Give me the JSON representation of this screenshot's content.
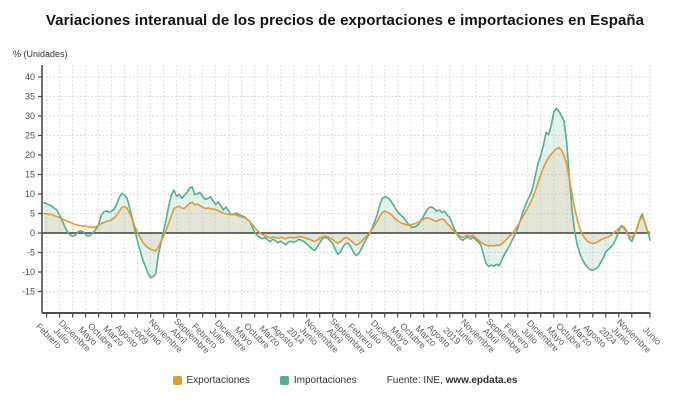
{
  "title": "Variaciones interanual de los precios de exportaciones e importaciones en España",
  "y_axis_label": "% (Unidades)",
  "legend": {
    "exportaciones": "Exportaciones",
    "importaciones": "Importaciones",
    "source_prefix": "Fuente: INE,",
    "source_link": "www.epdata.es"
  },
  "colors": {
    "exportaciones": "#df9c3b",
    "importaciones": "#55b091",
    "exportaciones_fill": "rgba(223,156,59,0.13)",
    "importaciones_fill": "rgba(85,176,145,0.16)",
    "grid": "#d2d6db",
    "axis": "#4d4d4d",
    "zero_line": "#3f3f3f",
    "tick_text": "#4d4d4d",
    "xlabel_text": "#5f5f5f"
  },
  "chart_data": {
    "type": "line",
    "title": "Variaciones interanual de los precios de exportaciones e importaciones en España",
    "xlabel": "",
    "ylabel": "% (Unidades)",
    "ylim": [
      -15,
      40
    ],
    "y_ticks": [
      40,
      35,
      30,
      25,
      20,
      15,
      10,
      5,
      0,
      -5,
      -10,
      -15
    ],
    "grid": true,
    "legend_position": "bottom",
    "x_frequency": "monthly",
    "x_tick_labels": [
      "Febrero",
      "Julio",
      "Diciembre",
      "Mayo",
      "Octubre",
      "Marzo",
      "Agosto",
      "2009",
      "Junio",
      "Noviembre",
      "Abril",
      "Septiembre",
      "Febrero",
      "Julio",
      "Diciembre",
      "Mayo",
      "Octubre",
      "Marzo",
      "Agosto",
      "2014",
      "Junio",
      "Noviembre",
      "Abril",
      "Septiembre",
      "Febrero",
      "Julio",
      "Diciembre",
      "Mayo",
      "Octubre",
      "Marzo",
      "Agosto",
      "2019",
      "Junio",
      "Noviembre",
      "Abril",
      "Septiembre",
      "Febrero",
      "Julio",
      "Diciembre",
      "Mayo",
      "Octubre",
      "Marzo",
      "Agosto",
      "2024",
      "Junio",
      "Noviembre",
      "Junio"
    ],
    "series": [
      {
        "name": "Exportaciones",
        "color": "#df9c3b",
        "values": [
          4.9,
          5.0,
          4.7,
          4.8,
          4.4,
          4.2,
          3.9,
          3.6,
          3.3,
          3.0,
          2.8,
          2.5,
          2.2,
          2.0,
          1.9,
          1.7,
          1.8,
          1.5,
          1.6,
          1.4,
          1.6,
          1.9,
          2.4,
          2.7,
          3.0,
          3.1,
          3.4,
          3.9,
          4.6,
          5.6,
          6.6,
          6.8,
          6.3,
          5.0,
          3.4,
          1.6,
          0.2,
          -1.2,
          -2.4,
          -3.2,
          -3.8,
          -4.2,
          -4.4,
          -4.6,
          -3.6,
          -2.2,
          -0.8,
          0.8,
          2.6,
          4.4,
          6.3,
          6.6,
          6.9,
          6.4,
          6.3,
          7.0,
          7.6,
          7.9,
          7.2,
          7.4,
          7.0,
          6.6,
          6.3,
          6.4,
          6.2,
          6.1,
          6.0,
          5.8,
          5.4,
          5.1,
          4.9,
          4.8,
          4.7,
          4.8,
          4.6,
          4.3,
          4.1,
          4.0,
          3.5,
          3.0,
          2.2,
          1.4,
          0.6,
          0.0,
          -0.4,
          -0.7,
          -1.0,
          -1.3,
          -1.0,
          -1.2,
          -1.4,
          -1.1,
          -1.3,
          -1.5,
          -1.2,
          -1.1,
          -1.3,
          -1.1,
          -0.9,
          -1.0,
          -1.2,
          -1.4,
          -1.6,
          -1.9,
          -2.2,
          -1.8,
          -1.4,
          -1.0,
          -0.8,
          -0.9,
          -1.3,
          -1.7,
          -2.2,
          -2.6,
          -2.2,
          -1.6,
          -1.2,
          -1.4,
          -2.0,
          -2.6,
          -3.1,
          -2.8,
          -2.2,
          -1.5,
          -0.8,
          -0.2,
          0.8,
          1.8,
          2.9,
          4.1,
          5.2,
          5.6,
          5.4,
          5.0,
          4.4,
          3.7,
          3.1,
          2.7,
          2.4,
          2.2,
          2.0,
          2.1,
          2.3,
          2.5,
          2.8,
          3.2,
          3.6,
          3.9,
          3.8,
          3.5,
          3.2,
          3.0,
          3.4,
          3.6,
          3.3,
          2.4,
          1.8,
          1.0,
          0.2,
          -0.4,
          -0.8,
          -1.1,
          -0.8,
          -0.6,
          -0.9,
          -0.6,
          -1.2,
          -1.8,
          -2.4,
          -2.8,
          -3.1,
          -3.3,
          -3.2,
          -3.3,
          -3.1,
          -3.2,
          -2.8,
          -2.2,
          -1.5,
          -0.8,
          -0.1,
          0.8,
          1.8,
          2.9,
          4.1,
          5.3,
          6.5,
          7.7,
          9.2,
          11.0,
          13.0,
          15.0,
          16.8,
          18.2,
          19.3,
          20.2,
          21.0,
          21.6,
          21.9,
          21.2,
          19.8,
          17.5,
          13.8,
          10.0,
          6.5,
          3.5,
          1.2,
          -0.4,
          -1.4,
          -2.1,
          -2.5,
          -2.7,
          -2.6,
          -2.2,
          -1.8,
          -1.5,
          -1.2,
          -1.0,
          -0.6,
          0.0,
          0.6,
          1.2,
          1.6,
          1.2,
          0.3,
          -0.8,
          -1.1,
          -0.5,
          0.9,
          3.3,
          4.2,
          2.8,
          0.5,
          0.1
        ]
      },
      {
        "name": "Importaciones",
        "color": "#55b091",
        "values": [
          7.8,
          7.5,
          7.2,
          6.9,
          6.3,
          5.8,
          4.6,
          3.2,
          1.6,
          0.3,
          -0.5,
          -0.8,
          -0.6,
          0.2,
          0.6,
          0.3,
          -0.4,
          -0.8,
          -0.5,
          0.2,
          1.0,
          2.0,
          4.6,
          5.4,
          5.7,
          5.3,
          5.6,
          6.1,
          7.4,
          9.2,
          10.2,
          9.7,
          8.8,
          6.4,
          3.6,
          0.6,
          -2.2,
          -4.6,
          -6.9,
          -8.6,
          -10.4,
          -11.5,
          -11.2,
          -10.4,
          -5.5,
          -2.5,
          0.5,
          3.5,
          7.0,
          9.8,
          11.0,
          9.4,
          9.9,
          8.9,
          9.6,
          10.4,
          11.5,
          11.8,
          9.8,
          10.1,
          10.4,
          9.4,
          8.6,
          8.9,
          9.3,
          8.2,
          7.3,
          8.0,
          6.9,
          5.9,
          6.7,
          5.6,
          4.7,
          4.9,
          5.1,
          4.7,
          4.4,
          4.2,
          3.6,
          3.1,
          1.6,
          0.2,
          -0.7,
          -1.1,
          -1.5,
          -1.1,
          -1.8,
          -2.2,
          -1.6,
          -2.0,
          -2.5,
          -2.1,
          -2.6,
          -3.0,
          -2.3,
          -2.1,
          -2.4,
          -2.1,
          -1.6,
          -1.9,
          -2.2,
          -2.8,
          -3.4,
          -4.0,
          -4.5,
          -3.7,
          -2.5,
          -1.5,
          -1.1,
          -1.3,
          -2.0,
          -2.7,
          -4.2,
          -5.5,
          -4.9,
          -3.5,
          -2.7,
          -2.6,
          -3.6,
          -4.9,
          -5.8,
          -5.3,
          -4.1,
          -2.7,
          -1.5,
          -0.5,
          1.0,
          2.7,
          4.5,
          6.9,
          8.8,
          9.3,
          9.1,
          8.6,
          7.6,
          6.4,
          5.4,
          4.7,
          4.1,
          3.3,
          2.4,
          1.7,
          1.4,
          1.7,
          2.2,
          3.3,
          4.4,
          5.6,
          6.5,
          6.7,
          6.3,
          5.6,
          5.9,
          5.3,
          5.6,
          4.6,
          4.0,
          2.4,
          0.8,
          -0.6,
          -1.4,
          -1.9,
          -1.3,
          -1.0,
          -1.6,
          -1.1,
          -1.7,
          -2.3,
          -3.1,
          -5.6,
          -7.8,
          -8.6,
          -8.2,
          -8.5,
          -8.0,
          -8.4,
          -7.0,
          -5.5,
          -4.4,
          -3.2,
          -1.8,
          -0.4,
          1.0,
          3.0,
          5.2,
          7.0,
          8.6,
          9.8,
          12.0,
          15.0,
          18.0,
          20.0,
          22.5,
          25.8,
          25.2,
          27.5,
          31.0,
          32.0,
          31.2,
          30.0,
          28.5,
          23.0,
          14.0,
          6.0,
          0.5,
          -3.0,
          -5.2,
          -6.8,
          -8.0,
          -8.8,
          -9.4,
          -9.5,
          -9.2,
          -8.8,
          -7.6,
          -6.5,
          -4.8,
          -4.2,
          -3.6,
          -2.8,
          -1.3,
          0.6,
          1.9,
          1.5,
          0.6,
          -1.3,
          -2.2,
          -0.6,
          1.2,
          3.4,
          4.9,
          2.6,
          0.7,
          -1.8
        ]
      }
    ]
  }
}
